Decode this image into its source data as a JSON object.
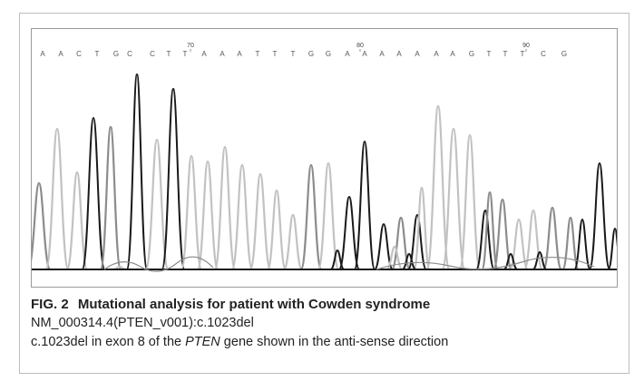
{
  "chart_data": {
    "type": "line",
    "title": "",
    "xlabel": "",
    "ylabel": "",
    "position_ticks": [
      "70",
      "80",
      "90"
    ],
    "base_calls": [
      "A",
      "A",
      "C",
      "T",
      "G",
      "C",
      "C",
      "T",
      "T",
      "A",
      "A",
      "A",
      "T",
      "T",
      "T",
      "G",
      "G",
      "A",
      "A",
      "A",
      "A",
      "A",
      "A",
      "A",
      "G",
      "T",
      "T",
      "T",
      "C",
      "G"
    ],
    "grid": false
  },
  "caption": {
    "fig_label": "FIG. 2",
    "title": "Mutational analysis for patient with Cowden syndrome",
    "variant": "NM_000314.4(PTEN_v001):c.1023del",
    "line2_pre": "c.1023del in exon 8 of the ",
    "line2_gene": "PTEN",
    "line2_post": " gene shown in the anti-sense direction"
  },
  "colors": {
    "trace_dark": "#1a1a1a",
    "trace_mid": "#8c8c8c",
    "trace_light": "#c2c2c2",
    "frame": "#bdbdbd"
  }
}
